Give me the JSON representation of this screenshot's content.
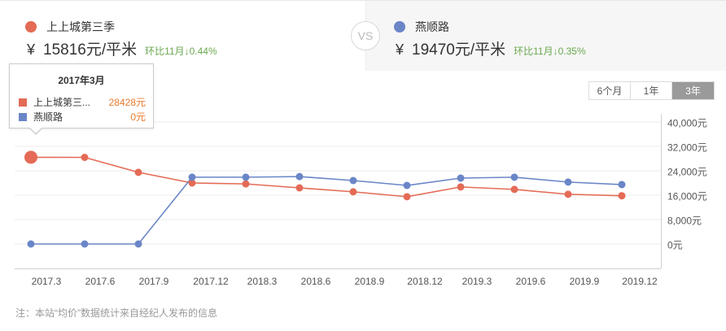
{
  "header": {
    "left": {
      "name": "上上城第三季",
      "color": "#e46b56",
      "currency": "¥",
      "price": "15816元/平米",
      "change": "环比11月↓0.44%"
    },
    "vs_label": "VS",
    "right": {
      "name": "燕顺路",
      "color": "#6a86c7",
      "currency": "¥",
      "price": "19470元/平米",
      "change": "环比11月↓0.35%"
    }
  },
  "range_selector": {
    "options": [
      {
        "label": "6个月",
        "active": false
      },
      {
        "label": "1年",
        "active": false
      },
      {
        "label": "3年",
        "active": true
      }
    ]
  },
  "tooltip": {
    "title": "2017年3月",
    "rows": [
      {
        "name": "上上城第三...",
        "value": "28428元",
        "color": "#e46b56"
      },
      {
        "name": "燕顺路",
        "value": "0元",
        "color": "#6a86c7"
      }
    ]
  },
  "footnote": "注：本站“均价”数据统计来自经纪人发布的信息",
  "chart_data": {
    "type": "line",
    "title": "",
    "xlabel": "",
    "ylabel": "",
    "categories": [
      "2017.3",
      "2017.6",
      "2017.9",
      "2017.12",
      "2018.3",
      "2018.6",
      "2018.9",
      "2018.12",
      "2019.3",
      "2019.6",
      "2019.9",
      "2019.12"
    ],
    "series": [
      {
        "name": "上上城第三季",
        "color": "#e46b56",
        "values": [
          28428,
          28400,
          23500,
          20000,
          19700,
          18400,
          17100,
          15500,
          18700,
          17900,
          16300,
          15816
        ]
      },
      {
        "name": "燕顺路",
        "color": "#6a86c7",
        "values": [
          0,
          0,
          0,
          21900,
          21900,
          22100,
          20800,
          19200,
          21600,
          21900,
          20300,
          19470
        ]
      }
    ],
    "y_ticks": [
      "40,000元",
      "32,000元",
      "24,000元",
      "16,000元",
      "8,000元",
      "0元"
    ],
    "y_tick_values": [
      40000,
      32000,
      24000,
      16000,
      8000,
      0
    ],
    "ylim": [
      -8000,
      40000
    ],
    "grid": true,
    "y_axis_position": "right",
    "highlighted_index": 0
  }
}
